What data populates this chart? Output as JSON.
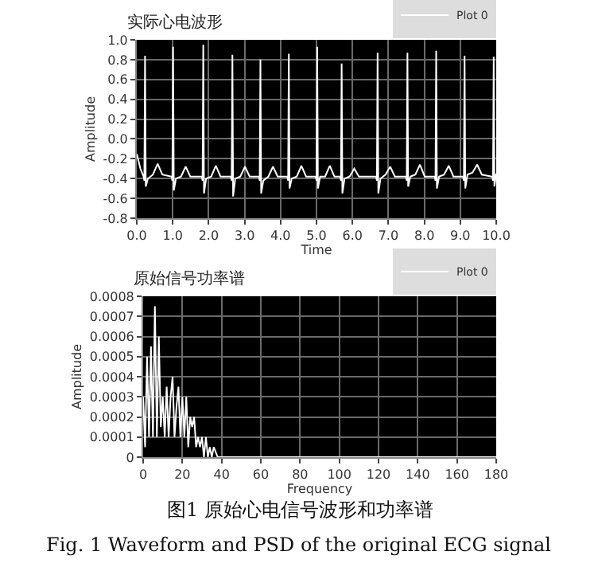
{
  "chart_data": [
    {
      "type": "line",
      "title": "实际心电波形",
      "xlabel": "Time",
      "ylabel": "Amplitude",
      "legend": "top right",
      "grid": true,
      "marker": "none",
      "line_style": "solid",
      "xlim": [
        0,
        10
      ],
      "xticks": [
        {
          "value": 0,
          "label": "0.0"
        },
        {
          "value": 1,
          "label": "1.0"
        },
        {
          "value": 2,
          "label": "2.0"
        },
        {
          "value": 3,
          "label": "3.0"
        },
        {
          "value": 4,
          "label": "4.0"
        },
        {
          "value": 5,
          "label": "5.0"
        },
        {
          "value": 6,
          "label": "6.0"
        },
        {
          "value": 7,
          "label": "7.0"
        },
        {
          "value": 8,
          "label": "8.0"
        },
        {
          "value": 9,
          "label": "9.0"
        },
        {
          "value": 10,
          "label": "10.0"
        }
      ],
      "ylim": [
        -0.8,
        1.0
      ],
      "yticks": [
        -0.8,
        -0.6,
        -0.4,
        -0.2,
        {
          "value": 0,
          "label": "0.0"
        },
        0.2,
        0.4,
        0.6,
        0.8,
        {
          "value": 1,
          "label": "1.0"
        }
      ],
      "series": [
        {
          "name": "Plot 0",
          "color": "#ffffff",
          "x": [
            0,
            0.1,
            0.19,
            0.21,
            0.23,
            0.25,
            0.31,
            0.45,
            0.58,
            0.71,
            0.97,
            0.99,
            1.01,
            1.03,
            1.09,
            1.23,
            1.36,
            1.49,
            1.81,
            1.83,
            1.85,
            1.87,
            1.93,
            2.07,
            2.2,
            2.33,
            2.62,
            2.64,
            2.66,
            2.68,
            2.74,
            2.88,
            3.01,
            3.14,
            3.4,
            3.42,
            3.44,
            3.46,
            3.52,
            3.66,
            3.79,
            3.92,
            4.19,
            4.21,
            4.23,
            4.25,
            4.31,
            4.45,
            4.58,
            4.71,
            4.98,
            5.0,
            5.02,
            5.04,
            5.1,
            5.24,
            5.37,
            5.5,
            5.66,
            5.68,
            5.7,
            5.72,
            5.78,
            5.92,
            6.05,
            6.18,
            6.66,
            6.68,
            6.7,
            6.72,
            6.78,
            6.92,
            7.05,
            7.18,
            7.49,
            7.51,
            7.53,
            7.55,
            7.61,
            7.75,
            7.88,
            8.01,
            8.29,
            8.31,
            8.33,
            8.35,
            8.41,
            8.55,
            8.68,
            8.81,
            9.08,
            9.1,
            9.12,
            9.14,
            9.2,
            9.34,
            9.47,
            9.6,
            9.89,
            9.91,
            9.93,
            9.95,
            10
          ],
          "values": [
            -0.15,
            -0.3,
            -0.38,
            -0.42,
            0.84,
            -0.48,
            -0.4,
            -0.36,
            -0.25,
            -0.36,
            -0.38,
            -0.42,
            0.93,
            -0.52,
            -0.4,
            -0.38,
            -0.28,
            -0.38,
            -0.38,
            -0.42,
            0.95,
            -0.55,
            -0.4,
            -0.38,
            -0.27,
            -0.38,
            -0.38,
            -0.42,
            0.85,
            -0.58,
            -0.4,
            -0.38,
            -0.28,
            -0.38,
            -0.38,
            -0.42,
            0.8,
            -0.55,
            -0.42,
            -0.38,
            -0.28,
            -0.38,
            -0.38,
            -0.42,
            0.86,
            -0.5,
            -0.4,
            -0.38,
            -0.27,
            -0.38,
            -0.38,
            -0.42,
            0.93,
            -0.5,
            -0.38,
            -0.38,
            -0.27,
            -0.38,
            -0.38,
            -0.42,
            0.76,
            -0.55,
            -0.4,
            -0.38,
            -0.3,
            -0.38,
            -0.38,
            -0.42,
            0.87,
            -0.55,
            -0.4,
            -0.36,
            -0.28,
            -0.38,
            -0.38,
            -0.42,
            0.87,
            -0.48,
            -0.38,
            -0.36,
            -0.26,
            -0.38,
            -0.38,
            -0.42,
            0.89,
            -0.5,
            -0.38,
            -0.36,
            -0.27,
            -0.38,
            -0.38,
            -0.42,
            0.84,
            -0.5,
            -0.36,
            -0.34,
            -0.26,
            -0.36,
            -0.38,
            -0.42,
            0.83,
            -0.48,
            -0.35
          ]
        }
      ]
    },
    {
      "type": "line",
      "title": "原始信号功率谱",
      "xlabel": "Frequency",
      "ylabel": "Amplitude",
      "legend": "top right",
      "grid": true,
      "marker": "none",
      "line_style": "solid",
      "xlim": [
        0,
        180
      ],
      "xticks": [
        0,
        20,
        40,
        60,
        80,
        100,
        120,
        140,
        160,
        180
      ],
      "ylim": [
        0,
        0.0008
      ],
      "yticks": [
        0,
        0.0001,
        0.0002,
        0.0003,
        0.0004,
        0.0005,
        0.0006,
        0.0007,
        0.0008
      ],
      "annotations": [
        "图1 原始心电信号波形和功率谱",
        "Fig. 1 Waveform and PSD of the original ECG signal"
      ],
      "series": [
        {
          "name": "Plot 0",
          "color": "#ffffff",
          "x": [
            0,
            1,
            2,
            3,
            4,
            5,
            6,
            7,
            8,
            9,
            10,
            11,
            12,
            13,
            14,
            15,
            16,
            17,
            18,
            19,
            20,
            21,
            22,
            23,
            24,
            25,
            26,
            27,
            28,
            29,
            30,
            31,
            32,
            33,
            34,
            35,
            36,
            38,
            40,
            42,
            44,
            46,
            50,
            60,
            80,
            100,
            120,
            140,
            160,
            180
          ],
          "values": [
            0.0003,
            5e-05,
            0.0005,
            0.0001,
            0.00055,
            0.0001,
            0.00075,
            0.0001,
            0.0006,
            0.00015,
            0.0003,
            0.0001,
            0.00035,
            0.0001,
            0.0003,
            0.0004,
            0.0001,
            0.00025,
            0.00035,
            0.0001,
            0.0003,
            0.0001,
            0.0003,
            5e-05,
            0.0002,
            0.00015,
            0.0002,
            5e-05,
            0.0001,
            5e-05,
            0.0001,
            0,
            0.0001,
            0,
            5e-05,
            0,
            5e-05,
            0,
            0,
            0,
            0,
            0,
            0,
            0,
            0,
            0,
            0,
            0,
            0,
            0
          ]
        }
      ]
    }
  ]
}
